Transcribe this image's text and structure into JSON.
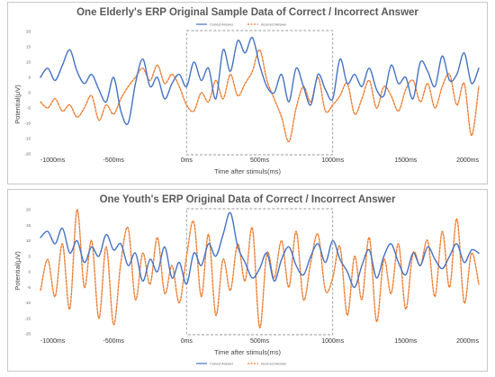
{
  "chart_data": [
    {
      "type": "line",
      "title": "One Elderly's ERP Original Sample Data of Correct / Incorrect Answer",
      "xlabel": "Time after stimuls(ms)",
      "ylabel": "Potential(μV)",
      "x_ticks": [
        "-1000ms",
        "-500ms",
        "0ms",
        "500ms",
        "1000ms",
        "1500ms",
        "2000ms"
      ],
      "y_ticks": [
        "20",
        "15",
        "10",
        "5",
        "0",
        "-5",
        "-10",
        "-15",
        "-20"
      ],
      "xlim": [
        -1000,
        2000
      ],
      "ylim": [
        -20,
        20
      ],
      "grid": false,
      "legend_position": "top-center",
      "highlight_window_ms": [
        0,
        1000
      ],
      "series": [
        {
          "name": "Correct Answer",
          "color": "#4472c4",
          "style": "solid",
          "x": [
            -1000,
            -950,
            -900,
            -850,
            -800,
            -750,
            -700,
            -650,
            -600,
            -550,
            -500,
            -450,
            -400,
            -350,
            -300,
            -250,
            -200,
            -150,
            -100,
            -50,
            0,
            50,
            100,
            150,
            200,
            250,
            300,
            350,
            400,
            450,
            500,
            550,
            600,
            650,
            700,
            750,
            800,
            850,
            900,
            950,
            1000,
            1050,
            1100,
            1150,
            1200,
            1250,
            1300,
            1350,
            1400,
            1450,
            1500,
            1550,
            1600,
            1650,
            1700,
            1750,
            1800,
            1850,
            1900,
            1950,
            2000
          ],
          "y": [
            5,
            8,
            4,
            9,
            14,
            7,
            3,
            6,
            1,
            -3,
            5,
            -6,
            -10,
            3,
            11,
            2,
            5,
            -2,
            3,
            6,
            2,
            10,
            4,
            8,
            -2,
            14,
            7,
            17,
            13,
            18,
            9,
            2,
            0,
            6,
            -3,
            8,
            2,
            -4,
            6,
            1,
            -2,
            11,
            3,
            6,
            2,
            8,
            1,
            -1,
            9,
            3,
            5,
            -2,
            10,
            7,
            2,
            12,
            4,
            6,
            13,
            3,
            8
          ]
        },
        {
          "name": "Incorrect Answer",
          "color": "#ed7d31",
          "style": "dashed",
          "x": [
            -1000,
            -950,
            -900,
            -850,
            -800,
            -750,
            -700,
            -650,
            -600,
            -550,
            -500,
            -450,
            -400,
            -350,
            -300,
            -250,
            -200,
            -150,
            -100,
            -50,
            0,
            50,
            100,
            150,
            200,
            250,
            300,
            350,
            400,
            450,
            500,
            550,
            600,
            650,
            700,
            750,
            800,
            850,
            900,
            950,
            1000,
            1050,
            1100,
            1150,
            1200,
            1250,
            1300,
            1350,
            1400,
            1450,
            1500,
            1550,
            1600,
            1650,
            1700,
            1750,
            1800,
            1850,
            1900,
            1950,
            2000
          ],
          "y": [
            -3,
            -5,
            -2,
            -6,
            -4,
            -8,
            -5,
            -1,
            -9,
            -4,
            -7,
            -2,
            2,
            5,
            8,
            4,
            9,
            3,
            6,
            2,
            -4,
            -6,
            0,
            -3,
            4,
            -2,
            6,
            -1,
            3,
            7,
            14,
            4,
            -2,
            -8,
            -16,
            -5,
            2,
            -3,
            5,
            -6,
            -4,
            -1,
            3,
            -7,
            -2,
            4,
            -5,
            2,
            -1,
            -6,
            1,
            4,
            -3,
            3,
            -5,
            2,
            6,
            -4,
            3,
            -14,
            2
          ]
        }
      ]
    },
    {
      "type": "line",
      "title": "One Youth's ERP Original Data of Correct / Incorrect Answer",
      "xlabel": "Time after stimuls(ms)",
      "ylabel": "Potential(μV)",
      "x_ticks": [
        "-1000ms",
        "-500ms",
        "0ms",
        "500ms",
        "1000ms",
        "1500ms",
        "2000ms"
      ],
      "y_ticks": [
        "20",
        "15",
        "10",
        "5",
        "0",
        "-5",
        "-10",
        "-15",
        "-20"
      ],
      "xlim": [
        -1000,
        2000
      ],
      "ylim": [
        -20,
        20
      ],
      "grid": false,
      "legend_position": "bottom-center",
      "highlight_window_ms": [
        0,
        1000
      ],
      "series": [
        {
          "name": "Correct Answer",
          "color": "#4472c4",
          "style": "solid",
          "x": [
            -1000,
            -950,
            -900,
            -850,
            -800,
            -750,
            -700,
            -650,
            -600,
            -550,
            -500,
            -450,
            -400,
            -350,
            -300,
            -250,
            -200,
            -150,
            -100,
            -50,
            0,
            50,
            100,
            150,
            200,
            250,
            300,
            350,
            400,
            450,
            500,
            550,
            600,
            650,
            700,
            750,
            800,
            850,
            900,
            950,
            1000,
            1050,
            1100,
            1150,
            1200,
            1250,
            1300,
            1350,
            1400,
            1450,
            1500,
            1550,
            1600,
            1650,
            1700,
            1750,
            1800,
            1850,
            1900,
            1950,
            2000
          ],
          "y": [
            11,
            13,
            9,
            14,
            6,
            10,
            3,
            8,
            5,
            12,
            7,
            9,
            2,
            6,
            -3,
            4,
            0,
            8,
            -2,
            3,
            -4,
            6,
            2,
            9,
            5,
            12,
            19,
            8,
            3,
            -2,
            1,
            6,
            -3,
            4,
            8,
            2,
            -1,
            5,
            9,
            3,
            10,
            4,
            0,
            -5,
            2,
            7,
            -2,
            5,
            9,
            3,
            -1,
            6,
            2,
            8,
            4,
            1,
            5,
            9,
            3,
            7,
            6
          ]
        },
        {
          "name": "Incorrect Answer",
          "color": "#ed7d31",
          "style": "dashed",
          "x": [
            -1000,
            -950,
            -900,
            -850,
            -800,
            -750,
            -700,
            -650,
            -600,
            -550,
            -500,
            -450,
            -400,
            -350,
            -300,
            -250,
            -200,
            -150,
            -100,
            -50,
            0,
            50,
            100,
            150,
            200,
            250,
            300,
            350,
            400,
            450,
            500,
            550,
            600,
            650,
            700,
            750,
            800,
            850,
            900,
            950,
            1000,
            1050,
            1100,
            1150,
            1200,
            1250,
            1300,
            1350,
            1400,
            1450,
            1500,
            1550,
            1600,
            1650,
            1700,
            1750,
            1800,
            1850,
            1900,
            1950,
            2000
          ],
          "y": [
            -6,
            4,
            -8,
            9,
            -12,
            20,
            -5,
            10,
            -15,
            8,
            -17,
            3,
            14,
            -9,
            6,
            -4,
            11,
            -7,
            2,
            -10,
            5,
            16,
            -8,
            12,
            -14,
            4,
            -6,
            9,
            -3,
            14,
            -18,
            6,
            -2,
            10,
            -5,
            13,
            -9,
            3,
            12,
            -6,
            -2,
            8,
            -14,
            5,
            -9,
            11,
            -16,
            4,
            -7,
            9,
            -12,
            6,
            2,
            10,
            -8,
            13,
            -5,
            17,
            -10,
            6,
            -4
          ]
        }
      ]
    }
  ]
}
